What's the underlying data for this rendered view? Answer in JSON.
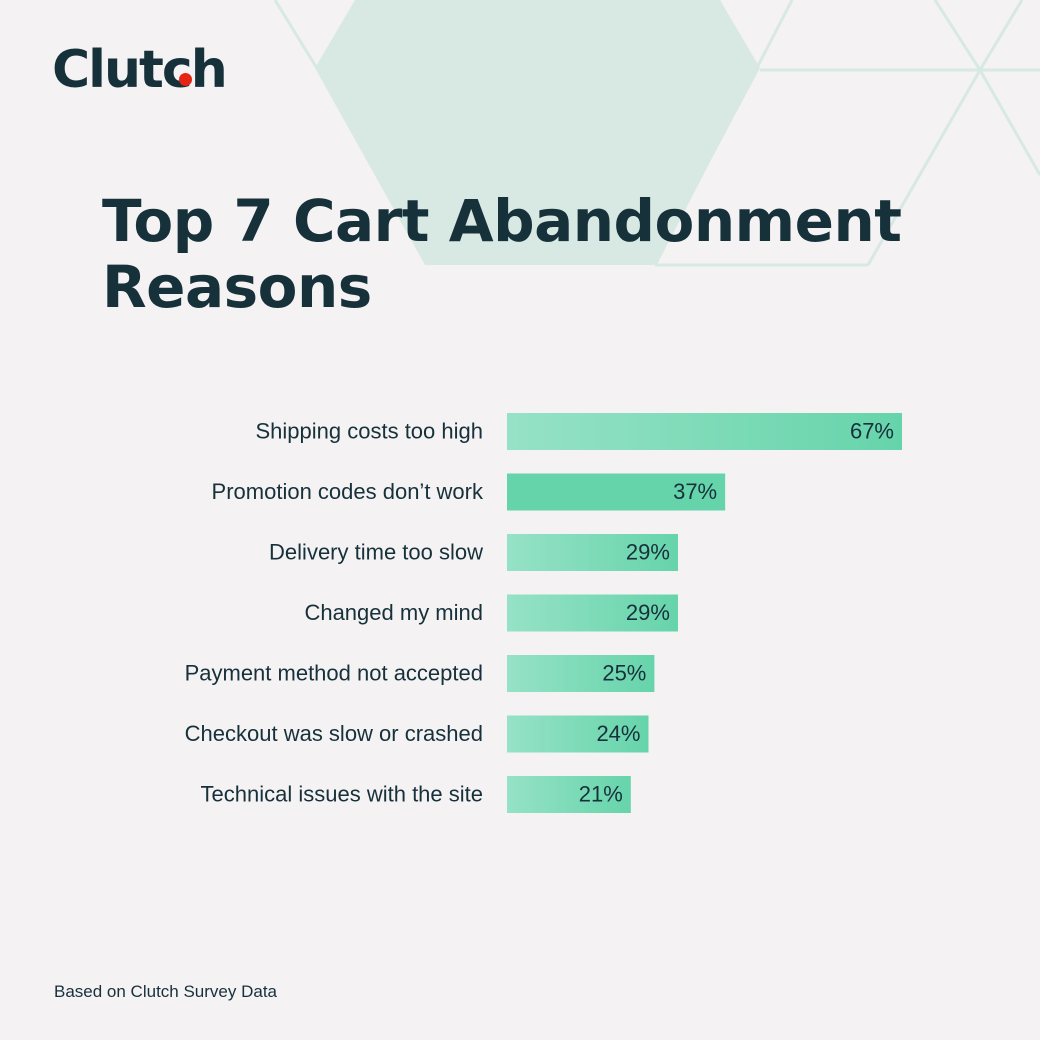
{
  "brand": {
    "logo_text": "Clutch"
  },
  "title_lines": [
    "Top 7 Cart Abandonment",
    "Reasons"
  ],
  "footer": "Based on Clutch Survey Data",
  "colors": {
    "background": "#f4f2f3",
    "text": "#17313b",
    "bar_light": "#96e2c6",
    "bar_dark": "#66d4ab",
    "bar_highlight": "#66d4ab",
    "logo_dot": "#e62415",
    "decor": "#d7e9e2"
  },
  "chart_data": {
    "type": "bar",
    "orientation": "horizontal",
    "title": "Top 7 Cart Abandonment Reasons",
    "categories": [
      "Shipping costs too high",
      "Promotion codes don’t work",
      "Delivery time too slow",
      "Changed my mind",
      "Payment method not accepted",
      "Checkout was slow or crashed",
      "Technical issues with the site"
    ],
    "values": [
      67,
      37,
      29,
      29,
      25,
      24,
      21
    ],
    "value_labels": [
      "67%",
      "37%",
      "29%",
      "29%",
      "25%",
      "24%",
      "21%"
    ],
    "unit": "%",
    "xlim": [
      0,
      67
    ],
    "grid": false,
    "legend": "none"
  }
}
